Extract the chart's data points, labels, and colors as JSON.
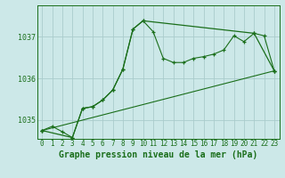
{
  "bg_color": "#cce8e8",
  "grid_color": "#aacccc",
  "line_color": "#1a6e1a",
  "marker_color": "#1a6e1a",
  "title": "Graphe pression niveau de la mer (hPa)",
  "xlim": [
    -0.5,
    23.5
  ],
  "ylim": [
    1034.55,
    1037.75
  ],
  "yticks": [
    1035,
    1036,
    1037
  ],
  "xticks": [
    0,
    1,
    2,
    3,
    4,
    5,
    6,
    7,
    8,
    9,
    10,
    11,
    12,
    13,
    14,
    15,
    16,
    17,
    18,
    19,
    20,
    21,
    22,
    23
  ],
  "series1_x": [
    0,
    1,
    2,
    3,
    4,
    5,
    6,
    7,
    8,
    9,
    10,
    11,
    12,
    13,
    14,
    15,
    16,
    17,
    18,
    19,
    20,
    21,
    22,
    23
  ],
  "series1_y": [
    1034.75,
    1034.85,
    1034.72,
    1034.58,
    1035.28,
    1035.32,
    1035.48,
    1035.72,
    1036.22,
    1037.18,
    1037.38,
    1037.12,
    1036.48,
    1036.38,
    1036.38,
    1036.48,
    1036.52,
    1036.58,
    1036.68,
    1037.02,
    1036.88,
    1037.08,
    1037.02,
    1036.18
  ],
  "series2_x": [
    0,
    3,
    4,
    5,
    6,
    7,
    8,
    9,
    10,
    21,
    23
  ],
  "series2_y": [
    1034.75,
    1034.58,
    1035.28,
    1035.32,
    1035.48,
    1035.72,
    1036.22,
    1037.18,
    1037.38,
    1037.08,
    1036.18
  ],
  "series3_x": [
    0,
    23
  ],
  "series3_y": [
    1034.75,
    1036.18
  ],
  "title_fontsize": 7,
  "tick_fontsize": 5.5
}
